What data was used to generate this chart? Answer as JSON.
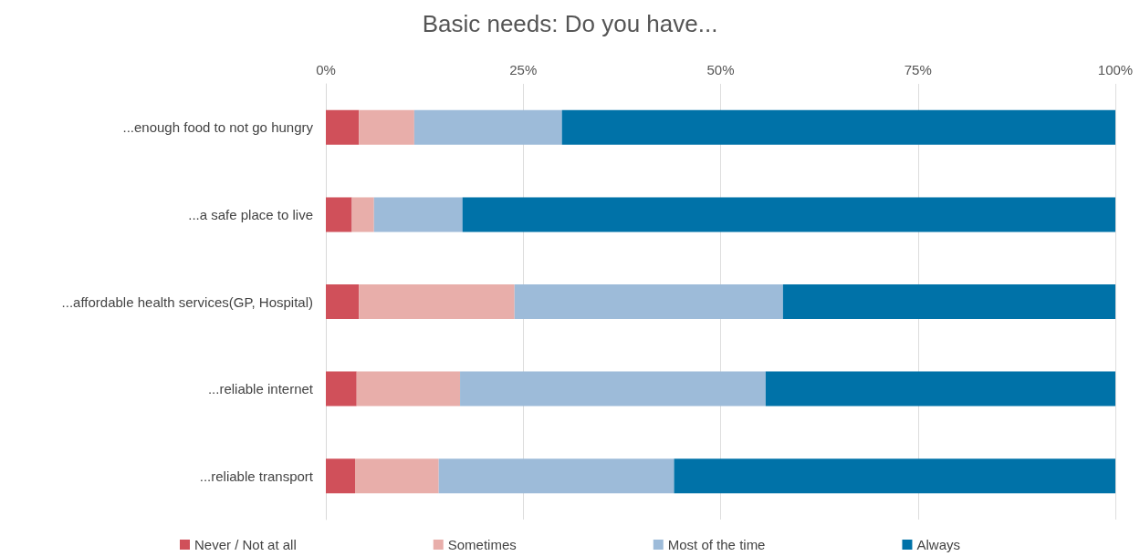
{
  "chart_data": {
    "type": "bar",
    "title": "Basic needs: Do you have...",
    "orientation": "horizontal",
    "stacked": true,
    "categories": [
      "...enough food to not go hungry",
      "...a safe place to live",
      "...affordable health services(GP, Hospital)",
      "...reliable internet",
      "...reliable transport"
    ],
    "series": [
      {
        "name": "Never / Not at all",
        "color": "#d0505a",
        "values": [
          4.2,
          3.3,
          4.2,
          3.9,
          3.7
        ]
      },
      {
        "name": "Sometimes",
        "color": "#e8aeaa",
        "values": [
          7.0,
          2.8,
          19.7,
          13.1,
          10.6
        ]
      },
      {
        "name": "Most of the time",
        "color": "#9dbbd9",
        "values": [
          18.7,
          11.2,
          34.0,
          38.7,
          29.8
        ]
      },
      {
        "name": "Always",
        "color": "#0072a8",
        "values": [
          70.1,
          82.7,
          42.1,
          44.3,
          55.9
        ]
      }
    ],
    "xlim": [
      0,
      100
    ],
    "xticks": [
      {
        "value": 0,
        "label": "0%"
      },
      {
        "value": 25,
        "label": "25%"
      },
      {
        "value": 50,
        "label": "50%"
      },
      {
        "value": 75,
        "label": "75%"
      },
      {
        "value": 100,
        "label": "100%"
      }
    ],
    "grid": "x",
    "legend": "bottom"
  }
}
